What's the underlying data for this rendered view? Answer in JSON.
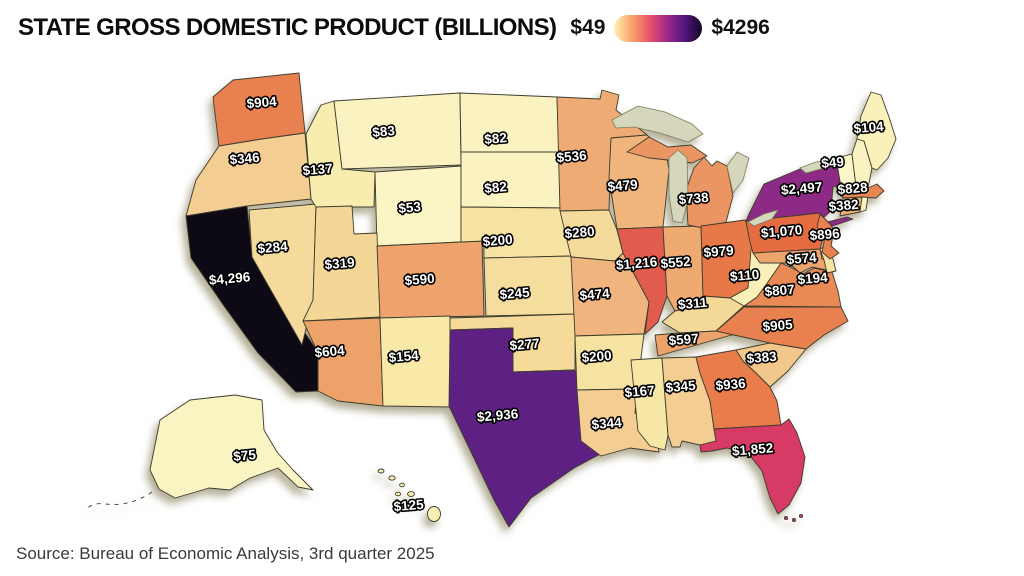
{
  "header": {
    "title": "STATE GROSS DOMESTIC PRODUCT (BILLIONS)"
  },
  "legend": {
    "min_label": "$49",
    "max_label": "$4296",
    "gradient_stops": [
      "#fdf2b4",
      "#fca469",
      "#e9536a",
      "#a02887",
      "#531582",
      "#140724"
    ]
  },
  "source": "Source: Bureau of Economic Analysis, 3rd quarter 2025",
  "chart_data": {
    "type": "choropleth",
    "title": "State Gross Domestic Product (Billions)",
    "unit": "billions of US dollars",
    "scale": {
      "min": 49,
      "max": 4296,
      "colormap": "light-yellow to orange to magenta to purple to black"
    },
    "states": [
      {
        "id": "WA",
        "name": "Washington",
        "value": 904,
        "label": "$904",
        "color": "#e8804f"
      },
      {
        "id": "OR",
        "name": "Oregon",
        "value": 346,
        "label": "$346",
        "color": "#f3cd91"
      },
      {
        "id": "CA",
        "name": "California",
        "value": 4296,
        "label": "$4,296",
        "color": "#0d0a15"
      },
      {
        "id": "ID",
        "name": "Idaho",
        "value": 137,
        "label": "$137",
        "color": "#f8ecae"
      },
      {
        "id": "NV",
        "name": "Nevada",
        "value": 284,
        "label": "$284",
        "color": "#f5db9b"
      },
      {
        "id": "MT",
        "name": "Montana",
        "value": 83,
        "label": "$83",
        "color": "#faf3c1"
      },
      {
        "id": "WY",
        "name": "Wyoming",
        "value": 53,
        "label": "$53",
        "color": "#fbf4c5"
      },
      {
        "id": "UT",
        "name": "Utah",
        "value": 319,
        "label": "$319",
        "color": "#f4d797"
      },
      {
        "id": "AZ",
        "name": "Arizona",
        "value": 604,
        "label": "$604",
        "color": "#eda26a"
      },
      {
        "id": "CO",
        "name": "Colorado",
        "value": 590,
        "label": "$590",
        "color": "#eda36b"
      },
      {
        "id": "NM",
        "name": "New Mexico",
        "value": 154,
        "label": "$154",
        "color": "#f8e9a9"
      },
      {
        "id": "ND",
        "name": "North Dakota",
        "value": 82,
        "label": "$82",
        "color": "#faf3c1"
      },
      {
        "id": "SD",
        "name": "South Dakota",
        "value": 82,
        "label": "$82",
        "color": "#faf3c1"
      },
      {
        "id": "NE",
        "name": "Nebraska",
        "value": 200,
        "label": "$200",
        "color": "#f6e3a2"
      },
      {
        "id": "KS",
        "name": "Kansas",
        "value": 245,
        "label": "$245",
        "color": "#f5dd9d"
      },
      {
        "id": "OK",
        "name": "Oklahoma",
        "value": 277,
        "label": "$277",
        "color": "#f5da9a"
      },
      {
        "id": "TX",
        "name": "Texas",
        "value": 2936,
        "label": "$2,936",
        "color": "#5e2083"
      },
      {
        "id": "MN",
        "name": "Minnesota",
        "value": 536,
        "label": "$536",
        "color": "#eeab73"
      },
      {
        "id": "IA",
        "name": "Iowa",
        "value": 280,
        "label": "$280",
        "color": "#f5db9b"
      },
      {
        "id": "MO",
        "name": "Missouri",
        "value": 474,
        "label": "$474",
        "color": "#f0b57e"
      },
      {
        "id": "AR",
        "name": "Arkansas",
        "value": 200,
        "label": "$200",
        "color": "#f6e3a2"
      },
      {
        "id": "LA",
        "name": "Louisiana",
        "value": 344,
        "label": "$344",
        "color": "#f3cd91"
      },
      {
        "id": "WI",
        "name": "Wisconsin",
        "value": 479,
        "label": "$479",
        "color": "#f0b47d"
      },
      {
        "id": "IL",
        "name": "Illinois",
        "value": 1216,
        "label": "$1,216",
        "color": "#e25c4d"
      },
      {
        "id": "IN",
        "name": "Indiana",
        "value": 552,
        "label": "$552",
        "color": "#eeaa71"
      },
      {
        "id": "MI",
        "name": "Michigan",
        "value": 738,
        "label": "$738",
        "color": "#eb9562"
      },
      {
        "id": "OH",
        "name": "Ohio",
        "value": 979,
        "label": "$979",
        "color": "#e77847"
      },
      {
        "id": "KY",
        "name": "Kentucky",
        "value": 311,
        "label": "$311",
        "color": "#f4d898"
      },
      {
        "id": "TN",
        "name": "Tennessee",
        "value": 597,
        "label": "$597",
        "color": "#eda26a"
      },
      {
        "id": "MS",
        "name": "Mississippi",
        "value": 167,
        "label": "$167",
        "color": "#f7e7a6"
      },
      {
        "id": "AL",
        "name": "Alabama",
        "value": 345,
        "label": "$345",
        "color": "#f3cd91"
      },
      {
        "id": "GA",
        "name": "Georgia",
        "value": 936,
        "label": "$936",
        "color": "#e87c4b"
      },
      {
        "id": "FL",
        "name": "Florida",
        "value": 1852,
        "label": "$1,852",
        "color": "#d63a65"
      },
      {
        "id": "SC",
        "name": "South Carolina",
        "value": 383,
        "label": "$383",
        "color": "#f2c78c"
      },
      {
        "id": "NC",
        "name": "North Carolina",
        "value": 905,
        "label": "$905",
        "color": "#e8814f"
      },
      {
        "id": "VA",
        "name": "Virginia",
        "value": 807,
        "label": "$807",
        "color": "#e98955"
      },
      {
        "id": "WV",
        "name": "West Virginia",
        "value": 110,
        "label": "$110",
        "color": "#f9efb8"
      },
      {
        "id": "MD",
        "name": "Maryland",
        "value": 574,
        "label": "$574",
        "color": "#eda56d"
      },
      {
        "id": "DE",
        "name": "Delaware",
        "value": 194,
        "label": "$194",
        "color": "#f6e4a3"
      },
      {
        "id": "PA",
        "name": "Pennsylvania",
        "value": 1070,
        "label": "$1,070",
        "color": "#e56c41"
      },
      {
        "id": "NJ",
        "name": "New Jersey",
        "value": 896,
        "label": "$896",
        "color": "#e8824f"
      },
      {
        "id": "NY",
        "name": "New York",
        "value": 2497,
        "label": "$2,497",
        "color": "#8c2a85"
      },
      {
        "id": "CT",
        "name": "Connecticut",
        "value": 382,
        "label": "$382",
        "color": "#efae72"
      },
      {
        "id": "RI",
        "name": "Rhode Island",
        "value": null,
        "label": "",
        "color": "#f9f1bd"
      },
      {
        "id": "MA",
        "name": "Massachusetts",
        "value": 828,
        "label": "$828",
        "color": "#e98753"
      },
      {
        "id": "VT",
        "name": "Vermont",
        "value": 49,
        "label": "$49",
        "color": "#fbf5c8"
      },
      {
        "id": "NH",
        "name": "New Hampshire",
        "value": null,
        "label": "",
        "color": "#faf2c0"
      },
      {
        "id": "ME",
        "name": "Maine",
        "value": 104,
        "label": "$104",
        "color": "#f9f0ba"
      },
      {
        "id": "AK",
        "name": "Alaska",
        "value": 75,
        "label": "$75",
        "color": "#faf3c2"
      },
      {
        "id": "HI",
        "name": "Hawaii",
        "value": 125,
        "label": "$125",
        "color": "#f8edb2"
      }
    ]
  }
}
